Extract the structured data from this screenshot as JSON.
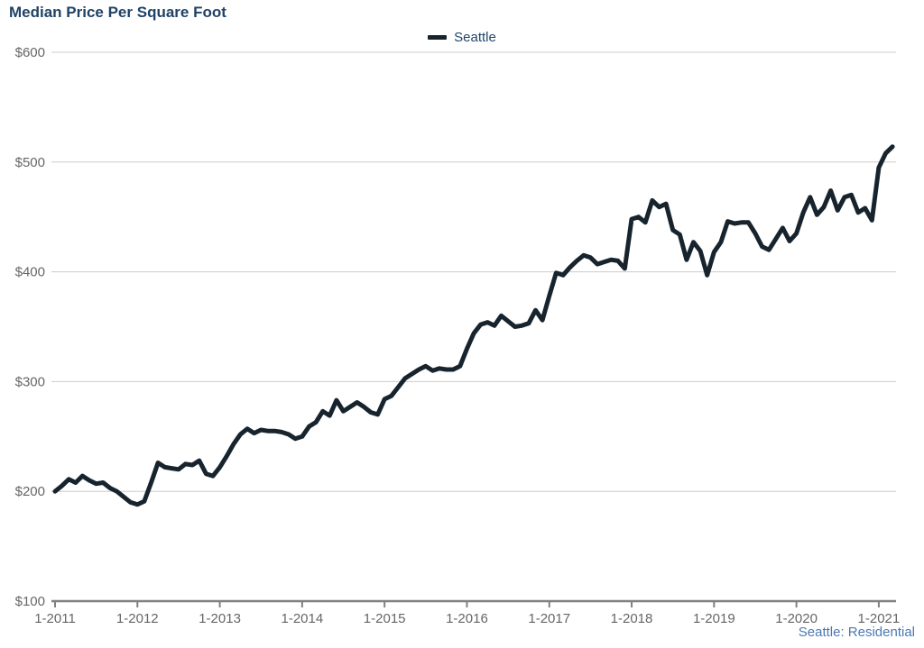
{
  "title": "Median Price Per Square Foot",
  "legend_label": "Seattle",
  "footer_note": "Seattle: Residential",
  "colors": {
    "title_text": "#1f4266",
    "series_line": "#17242e",
    "legend_text": "#23466b",
    "axis_label": "#666666",
    "axis_line": "#808080",
    "gridline": "#cccccc",
    "footer_text": "#4a79b2"
  },
  "chart_data": {
    "type": "line",
    "title": "Median Price Per Square Foot",
    "xlabel": "",
    "ylabel": "",
    "ylim": [
      100,
      600
    ],
    "grid": true,
    "legend_position": "top-center",
    "legend_entries": [
      "Seattle"
    ],
    "y_tick_values": [
      100,
      200,
      300,
      400,
      500,
      600
    ],
    "y_tick_labels": [
      "$100",
      "$200",
      "$300",
      "$400",
      "$500",
      "$600"
    ],
    "x_tick_labels": [
      "1-2011",
      "1-2012",
      "1-2013",
      "1-2014",
      "1-2015",
      "1-2016",
      "1-2017",
      "1-2018",
      "1-2019",
      "1-2020",
      "1-2021"
    ],
    "x_start": "2011-01",
    "x_end": "2021-03",
    "x_interval": "month",
    "series": [
      {
        "name": "Seattle",
        "values": [
          200,
          205,
          211,
          208,
          214,
          210,
          207,
          208,
          203,
          200,
          195,
          190,
          188,
          191,
          208,
          226,
          222,
          221,
          220,
          225,
          224,
          228,
          216,
          214,
          222,
          232,
          243,
          252,
          257,
          253,
          256,
          255,
          255,
          254,
          252,
          248,
          250,
          259,
          263,
          273,
          269,
          283,
          273,
          277,
          281,
          277,
          272,
          270,
          284,
          287,
          295,
          303,
          307,
          311,
          314,
          310,
          312,
          311,
          311,
          314,
          330,
          344,
          352,
          354,
          351,
          360,
          355,
          350,
          351,
          353,
          365,
          356,
          378,
          399,
          397,
          404,
          410,
          415,
          413,
          407,
          409,
          411,
          410,
          403,
          448,
          450,
          445,
          465,
          459,
          462,
          438,
          434,
          411,
          427,
          419,
          397,
          418,
          427,
          446,
          444,
          445,
          445,
          435,
          423,
          420,
          430,
          440,
          428,
          435,
          454,
          468,
          452,
          459,
          474,
          456,
          468,
          470,
          454,
          458,
          447,
          495,
          508,
          514
        ]
      }
    ]
  }
}
